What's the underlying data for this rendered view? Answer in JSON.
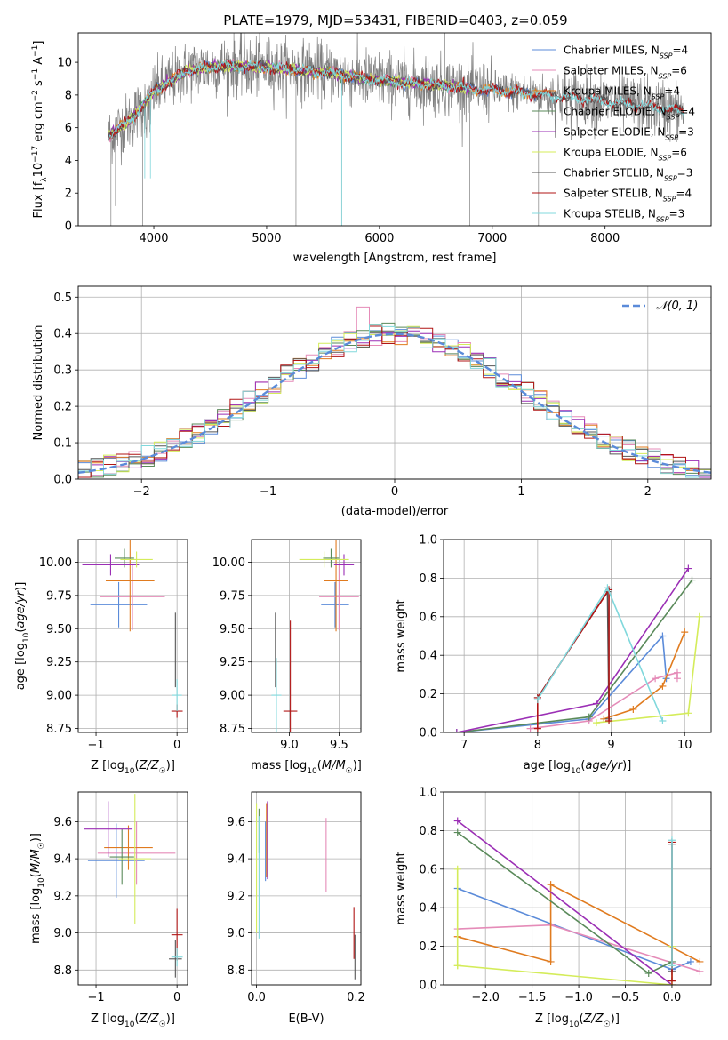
{
  "figure": {
    "title": "PLATE=1979, MJD=53431, FIBERID=0403, z=0.059"
  },
  "colors": {
    "Chabrier MILES": "#5b8bd9",
    "Salpeter MILES": "#e58bb8",
    "Kroupa MILES": "#e07b1f",
    "Chabrier ELODIE": "#5a8a5a",
    "Salpeter ELODIE": "#9b2fb5",
    "Kroupa ELODIE": "#d4ec5a",
    "Chabrier STELIB": "#555555",
    "Salpeter STELIB": "#b01515",
    "Kroupa STELIB": "#80d8dc",
    "data": "#808080",
    "gauss": "#5b8bd9",
    "grid": "#b0b0b0"
  },
  "chart_data": [
    {
      "id": "spectrum",
      "type": "line",
      "title": "PLATE=1979, MJD=53431, FIBERID=0403, z=0.059",
      "xlabel": "wavelength [Angstrom, rest frame]",
      "ylabel": "Flux [f_λ 10^-17 erg cm^-2 s^-1 A^-1]",
      "xlim": [
        3330,
        8940
      ],
      "ylim": [
        0,
        11.8
      ],
      "xticks": [
        4000,
        5000,
        6000,
        7000,
        8000
      ],
      "yticks": [
        0,
        2,
        4,
        6,
        8,
        10
      ],
      "grid": false,
      "legend_position": "top-right",
      "continuum_shape": {
        "x": [
          3600,
          3800,
          4000,
          4300,
          4600,
          5000,
          5500,
          6000,
          6500,
          7000,
          7500,
          8000,
          8400,
          8700
        ],
        "y": [
          5.5,
          6.5,
          8.2,
          9.5,
          9.8,
          9.7,
          9.4,
          8.9,
          8.6,
          8.3,
          8.0,
          7.6,
          7.3,
          7.0
        ]
      },
      "legend": [
        {
          "name": "Chabrier MILES",
          "nssp": "4"
        },
        {
          "name": "Salpeter MILES",
          "nssp": "6"
        },
        {
          "name": "Kroupa MILES",
          "nssp": "4"
        },
        {
          "name": "Chabrier ELODIE",
          "nssp": "4"
        },
        {
          "name": "Salpeter ELODIE",
          "nssp": "3"
        },
        {
          "name": "Kroupa ELODIE",
          "nssp": "6"
        },
        {
          "name": "Chabrier STELIB",
          "nssp": "3"
        },
        {
          "name": "Salpeter STELIB",
          "nssp": "4"
        },
        {
          "name": "Kroupa STELIB",
          "nssp": "3"
        }
      ]
    },
    {
      "id": "residuals",
      "type": "line",
      "xlabel": "(data-model)/error",
      "ylabel": "Normed distribution",
      "xlim": [
        -2.5,
        2.5
      ],
      "ylim": [
        0,
        0.53
      ],
      "xticks": [
        -2,
        -1,
        0,
        1,
        2
      ],
      "yticks": [
        0.0,
        0.1,
        0.2,
        0.3,
        0.4,
        0.5
      ],
      "grid": true,
      "legend_position": "top-right",
      "legend_label": "𝒩(0, 1)"
    },
    {
      "id": "age_vs_Z",
      "type": "scatter",
      "xlabel": "Z [log10(Z/Z☉)]",
      "ylabel": "age  [log10(age/yr)]",
      "xlim": [
        -1.22,
        0.13
      ],
      "ylim": [
        8.72,
        10.17
      ],
      "xticks": [
        -1,
        0
      ],
      "yticks": [
        8.75,
        9.0,
        9.25,
        9.5,
        9.75,
        10.0
      ],
      "grid": true,
      "points": [
        {
          "model": "Chabrier MILES",
          "x": -0.72,
          "y": 9.68,
          "xerr": 0.35,
          "yerr": 0.17
        },
        {
          "model": "Salpeter MILES",
          "x": -0.55,
          "y": 9.74,
          "xerr": 0.4,
          "yerr": 0.25
        },
        {
          "model": "Kroupa MILES",
          "x": -0.58,
          "y": 9.86,
          "xerr": 0.3,
          "yerr": 0.38
        },
        {
          "model": "Chabrier ELODIE",
          "x": -0.65,
          "y": 10.03,
          "xerr": 0.12,
          "yerr": 0.07
        },
        {
          "model": "Salpeter ELODIE",
          "x": -0.82,
          "y": 9.98,
          "xerr": 0.35,
          "yerr": 0.08
        },
        {
          "model": "Kroupa ELODIE",
          "x": -0.5,
          "y": 10.02,
          "xerr": 0.2,
          "yerr": 0.06
        },
        {
          "model": "Chabrier STELIB",
          "x": -0.02,
          "y": 9.34,
          "xerr": 0.0,
          "yerr": 0.28
        },
        {
          "model": "Salpeter STELIB",
          "x": 0.0,
          "y": 8.88,
          "xerr": 0.07,
          "yerr": 0.05
        },
        {
          "model": "Kroupa STELIB",
          "x": 0.0,
          "y": 9.0,
          "xerr": 0.06,
          "yerr": 0.12
        }
      ]
    },
    {
      "id": "age_vs_mass",
      "type": "scatter",
      "xlabel": "mass [log10(M/M☉)]",
      "ylabel": "",
      "xlim": [
        8.62,
        9.72
      ],
      "ylim": [
        8.72,
        10.17
      ],
      "xticks": [
        9.0,
        9.5
      ],
      "yticks": [
        8.75,
        9.0,
        9.25,
        9.5,
        9.75,
        10.0
      ],
      "grid": true,
      "points": [
        {
          "model": "Chabrier MILES",
          "x": 9.46,
          "y": 9.68,
          "xerr": 0.14,
          "yerr": 0.17
        },
        {
          "model": "Salpeter MILES",
          "x": 9.5,
          "y": 9.74,
          "xerr": 0.2,
          "yerr": 0.25
        },
        {
          "model": "Kroupa MILES",
          "x": 9.47,
          "y": 9.86,
          "xerr": 0.12,
          "yerr": 0.38
        },
        {
          "model": "Chabrier ELODIE",
          "x": 9.42,
          "y": 10.03,
          "xerr": 0.08,
          "yerr": 0.07
        },
        {
          "model": "Salpeter ELODIE",
          "x": 9.55,
          "y": 9.98,
          "xerr": 0.1,
          "yerr": 0.08
        },
        {
          "model": "Kroupa ELODIE",
          "x": 9.35,
          "y": 10.02,
          "xerr": 0.25,
          "yerr": 0.06
        },
        {
          "model": "Chabrier STELIB",
          "x": 8.86,
          "y": 9.34,
          "xerr": 0.0,
          "yerr": 0.28
        },
        {
          "model": "Salpeter STELIB",
          "x": 9.01,
          "y": 8.88,
          "xerr": 0.07,
          "yerr": 0.68
        },
        {
          "model": "Kroupa STELIB",
          "x": 8.87,
          "y": 9.0,
          "xerr": 0.05,
          "yerr": 0.28
        }
      ]
    },
    {
      "id": "weight_vs_age",
      "type": "line",
      "xlabel": "age  [log10(age/yr)]",
      "ylabel": "mass weight",
      "xlim": [
        6.72,
        10.36
      ],
      "ylim": [
        0,
        1.0
      ],
      "xticks": [
        7,
        8,
        9,
        10
      ],
      "yticks": [
        0.0,
        0.2,
        0.4,
        0.6,
        0.8,
        1.0
      ],
      "grid": true,
      "series": [
        {
          "name": "Chabrier MILES",
          "points": [
            [
              6.9,
              0.0
            ],
            [
              8.7,
              0.07
            ],
            [
              9.7,
              0.5
            ],
            [
              9.75,
              0.28
            ]
          ]
        },
        {
          "name": "Salpeter MILES",
          "points": [
            [
              7.9,
              0.02
            ],
            [
              8.7,
              0.06
            ],
            [
              9.6,
              0.28
            ],
            [
              9.9,
              0.31
            ],
            [
              9.9,
              0.28
            ]
          ]
        },
        {
          "name": "Kroupa MILES",
          "points": [
            [
              8.9,
              0.07
            ],
            [
              9.3,
              0.12
            ],
            [
              9.7,
              0.24
            ],
            [
              10.0,
              0.52
            ]
          ]
        },
        {
          "name": "Chabrier ELODIE",
          "points": [
            [
              6.9,
              0.0
            ],
            [
              8.7,
              0.08
            ],
            [
              10.1,
              0.79
            ]
          ]
        },
        {
          "name": "Salpeter ELODIE",
          "points": [
            [
              6.9,
              0.0
            ],
            [
              8.8,
              0.15
            ],
            [
              10.05,
              0.85
            ]
          ]
        },
        {
          "name": "Kroupa ELODIE",
          "points": [
            [
              8.8,
              0.05
            ],
            [
              10.05,
              0.1
            ],
            [
              10.2,
              0.6
            ]
          ]
        },
        {
          "name": "Chabrier STELIB",
          "points": [
            [
              8.0,
              0.18
            ],
            [
              8.95,
              0.73
            ],
            [
              8.97,
              0.07
            ]
          ]
        },
        {
          "name": "Salpeter STELIB",
          "points": [
            [
              8.0,
              0.02
            ],
            [
              8.0,
              0.18
            ],
            [
              8.97,
              0.74
            ],
            [
              8.97,
              0.06
            ]
          ]
        },
        {
          "name": "Kroupa STELIB",
          "points": [
            [
              8.0,
              0.17
            ],
            [
              8.95,
              0.75
            ],
            [
              9.7,
              0.06
            ]
          ]
        }
      ]
    },
    {
      "id": "mass_vs_Z",
      "type": "scatter",
      "xlabel": "Z [log10(Z/Z☉)]",
      "ylabel": "mass [log10(M/M☉)]",
      "xlim": [
        -1.22,
        0.13
      ],
      "ylim": [
        8.72,
        9.76
      ],
      "xticks": [
        -1,
        0
      ],
      "yticks": [
        8.8,
        9.0,
        9.2,
        9.4,
        9.6
      ],
      "grid": true,
      "points": [
        {
          "model": "Chabrier MILES",
          "x": -0.75,
          "y": 9.39,
          "xerr": 0.35,
          "yerr": 0.2
        },
        {
          "model": "Salpeter MILES",
          "x": -0.5,
          "y": 9.43,
          "xerr": 0.48,
          "yerr": 0.17
        },
        {
          "model": "Kroupa MILES",
          "x": -0.6,
          "y": 9.46,
          "xerr": 0.3,
          "yerr": 0.12
        },
        {
          "model": "Chabrier ELODIE",
          "x": -0.68,
          "y": 9.41,
          "xerr": 0.15,
          "yerr": 0.15
        },
        {
          "model": "Salpeter ELODIE",
          "x": -0.85,
          "y": 9.56,
          "xerr": 0.3,
          "yerr": 0.15
        },
        {
          "model": "Kroupa ELODIE",
          "x": -0.52,
          "y": 9.4,
          "xerr": 0.2,
          "yerr": 0.35
        },
        {
          "model": "Chabrier STELIB",
          "x": -0.02,
          "y": 8.86,
          "xerr": 0.08,
          "yerr": 0.1
        },
        {
          "model": "Salpeter STELIB",
          "x": 0.0,
          "y": 8.99,
          "xerr": 0.07,
          "yerr": 0.14
        },
        {
          "model": "Kroupa STELIB",
          "x": 0.0,
          "y": 8.87,
          "xerr": 0.07,
          "yerr": 0.05
        }
      ]
    },
    {
      "id": "mass_vs_EBV",
      "type": "scatter",
      "xlabel": "E(B-V)",
      "ylabel": "",
      "xlim": [
        -0.01,
        0.21
      ],
      "ylim": [
        8.72,
        9.76
      ],
      "xticks": [
        0.0,
        0.2
      ],
      "yticks": [
        8.8,
        9.0,
        9.2,
        9.4,
        9.6
      ],
      "grid": true,
      "points": [
        {
          "model": "Chabrier MILES",
          "x": 0.018,
          "y": 9.44,
          "xerr": 0,
          "yerr": 0.16
        },
        {
          "model": "Salpeter MILES",
          "x": 0.14,
          "y": 9.42,
          "xerr": 0,
          "yerr": 0.2
        },
        {
          "model": "Kroupa MILES",
          "x": 0.02,
          "y": 9.5,
          "xerr": 0,
          "yerr": 0.2
        },
        {
          "model": "Chabrier ELODIE",
          "x": 0.005,
          "y": 9.55,
          "xerr": 0,
          "yerr": 0.12
        },
        {
          "model": "Salpeter ELODIE",
          "x": 0.022,
          "y": 9.5,
          "xerr": 0,
          "yerr": 0.21
        },
        {
          "model": "Kroupa ELODIE",
          "x": 0.0,
          "y": 9.35,
          "xerr": 0,
          "yerr": 0.35
        },
        {
          "model": "Chabrier STELIB",
          "x": 0.198,
          "y": 8.87,
          "xerr": 0,
          "yerr": 0.12
        },
        {
          "model": "Salpeter STELIB",
          "x": 0.196,
          "y": 9.0,
          "xerr": 0,
          "yerr": 0.14
        },
        {
          "model": "Kroupa STELIB",
          "x": 0.005,
          "y": 9.3,
          "xerr": 0,
          "yerr": 0.33
        }
      ]
    },
    {
      "id": "weight_vs_Z",
      "type": "line",
      "xlabel": "Z [log10(Z/Z☉)]",
      "ylabel": "mass weight",
      "xlim": [
        -2.45,
        0.42
      ],
      "ylim": [
        0,
        1.0
      ],
      "xticks": [
        -2.0,
        -1.5,
        -1.0,
        -0.5,
        0.0
      ],
      "yticks": [
        0.0,
        0.2,
        0.4,
        0.6,
        0.8,
        1.0
      ],
      "grid": true,
      "series": [
        {
          "name": "Chabrier MILES",
          "points": [
            [
              -2.3,
              0.5
            ],
            [
              0.0,
              0.08
            ],
            [
              0.2,
              0.12
            ]
          ]
        },
        {
          "name": "Salpeter MILES",
          "points": [
            [
              -2.3,
              0.29
            ],
            [
              -1.3,
              0.31
            ],
            [
              0.3,
              0.07
            ]
          ]
        },
        {
          "name": "Kroupa MILES",
          "points": [
            [
              -2.3,
              0.25
            ],
            [
              -1.3,
              0.12
            ],
            [
              -1.3,
              0.52
            ],
            [
              0.3,
              0.12
            ]
          ]
        },
        {
          "name": "Chabrier ELODIE",
          "points": [
            [
              -2.3,
              0.79
            ],
            [
              -0.25,
              0.06
            ],
            [
              0.0,
              0.12
            ]
          ]
        },
        {
          "name": "Salpeter ELODIE",
          "points": [
            [
              -2.3,
              0.85
            ],
            [
              0.0,
              0.0
            ]
          ]
        },
        {
          "name": "Kroupa ELODIE",
          "points": [
            [
              -2.3,
              0.1
            ],
            [
              -2.3,
              0.6
            ],
            [
              -2.3,
              0.1
            ],
            [
              0.0,
              0.0
            ],
            [
              0.0,
              0.2
            ]
          ]
        },
        {
          "name": "Chabrier STELIB",
          "points": [
            [
              0.0,
              0.07
            ],
            [
              0.0,
              0.73
            ]
          ]
        },
        {
          "name": "Salpeter STELIB",
          "points": [
            [
              0.0,
              0.02
            ],
            [
              0.0,
              0.74
            ]
          ]
        },
        {
          "name": "Kroupa STELIB",
          "points": [
            [
              0.0,
              0.1
            ],
            [
              0.0,
              0.75
            ]
          ]
        }
      ]
    }
  ]
}
